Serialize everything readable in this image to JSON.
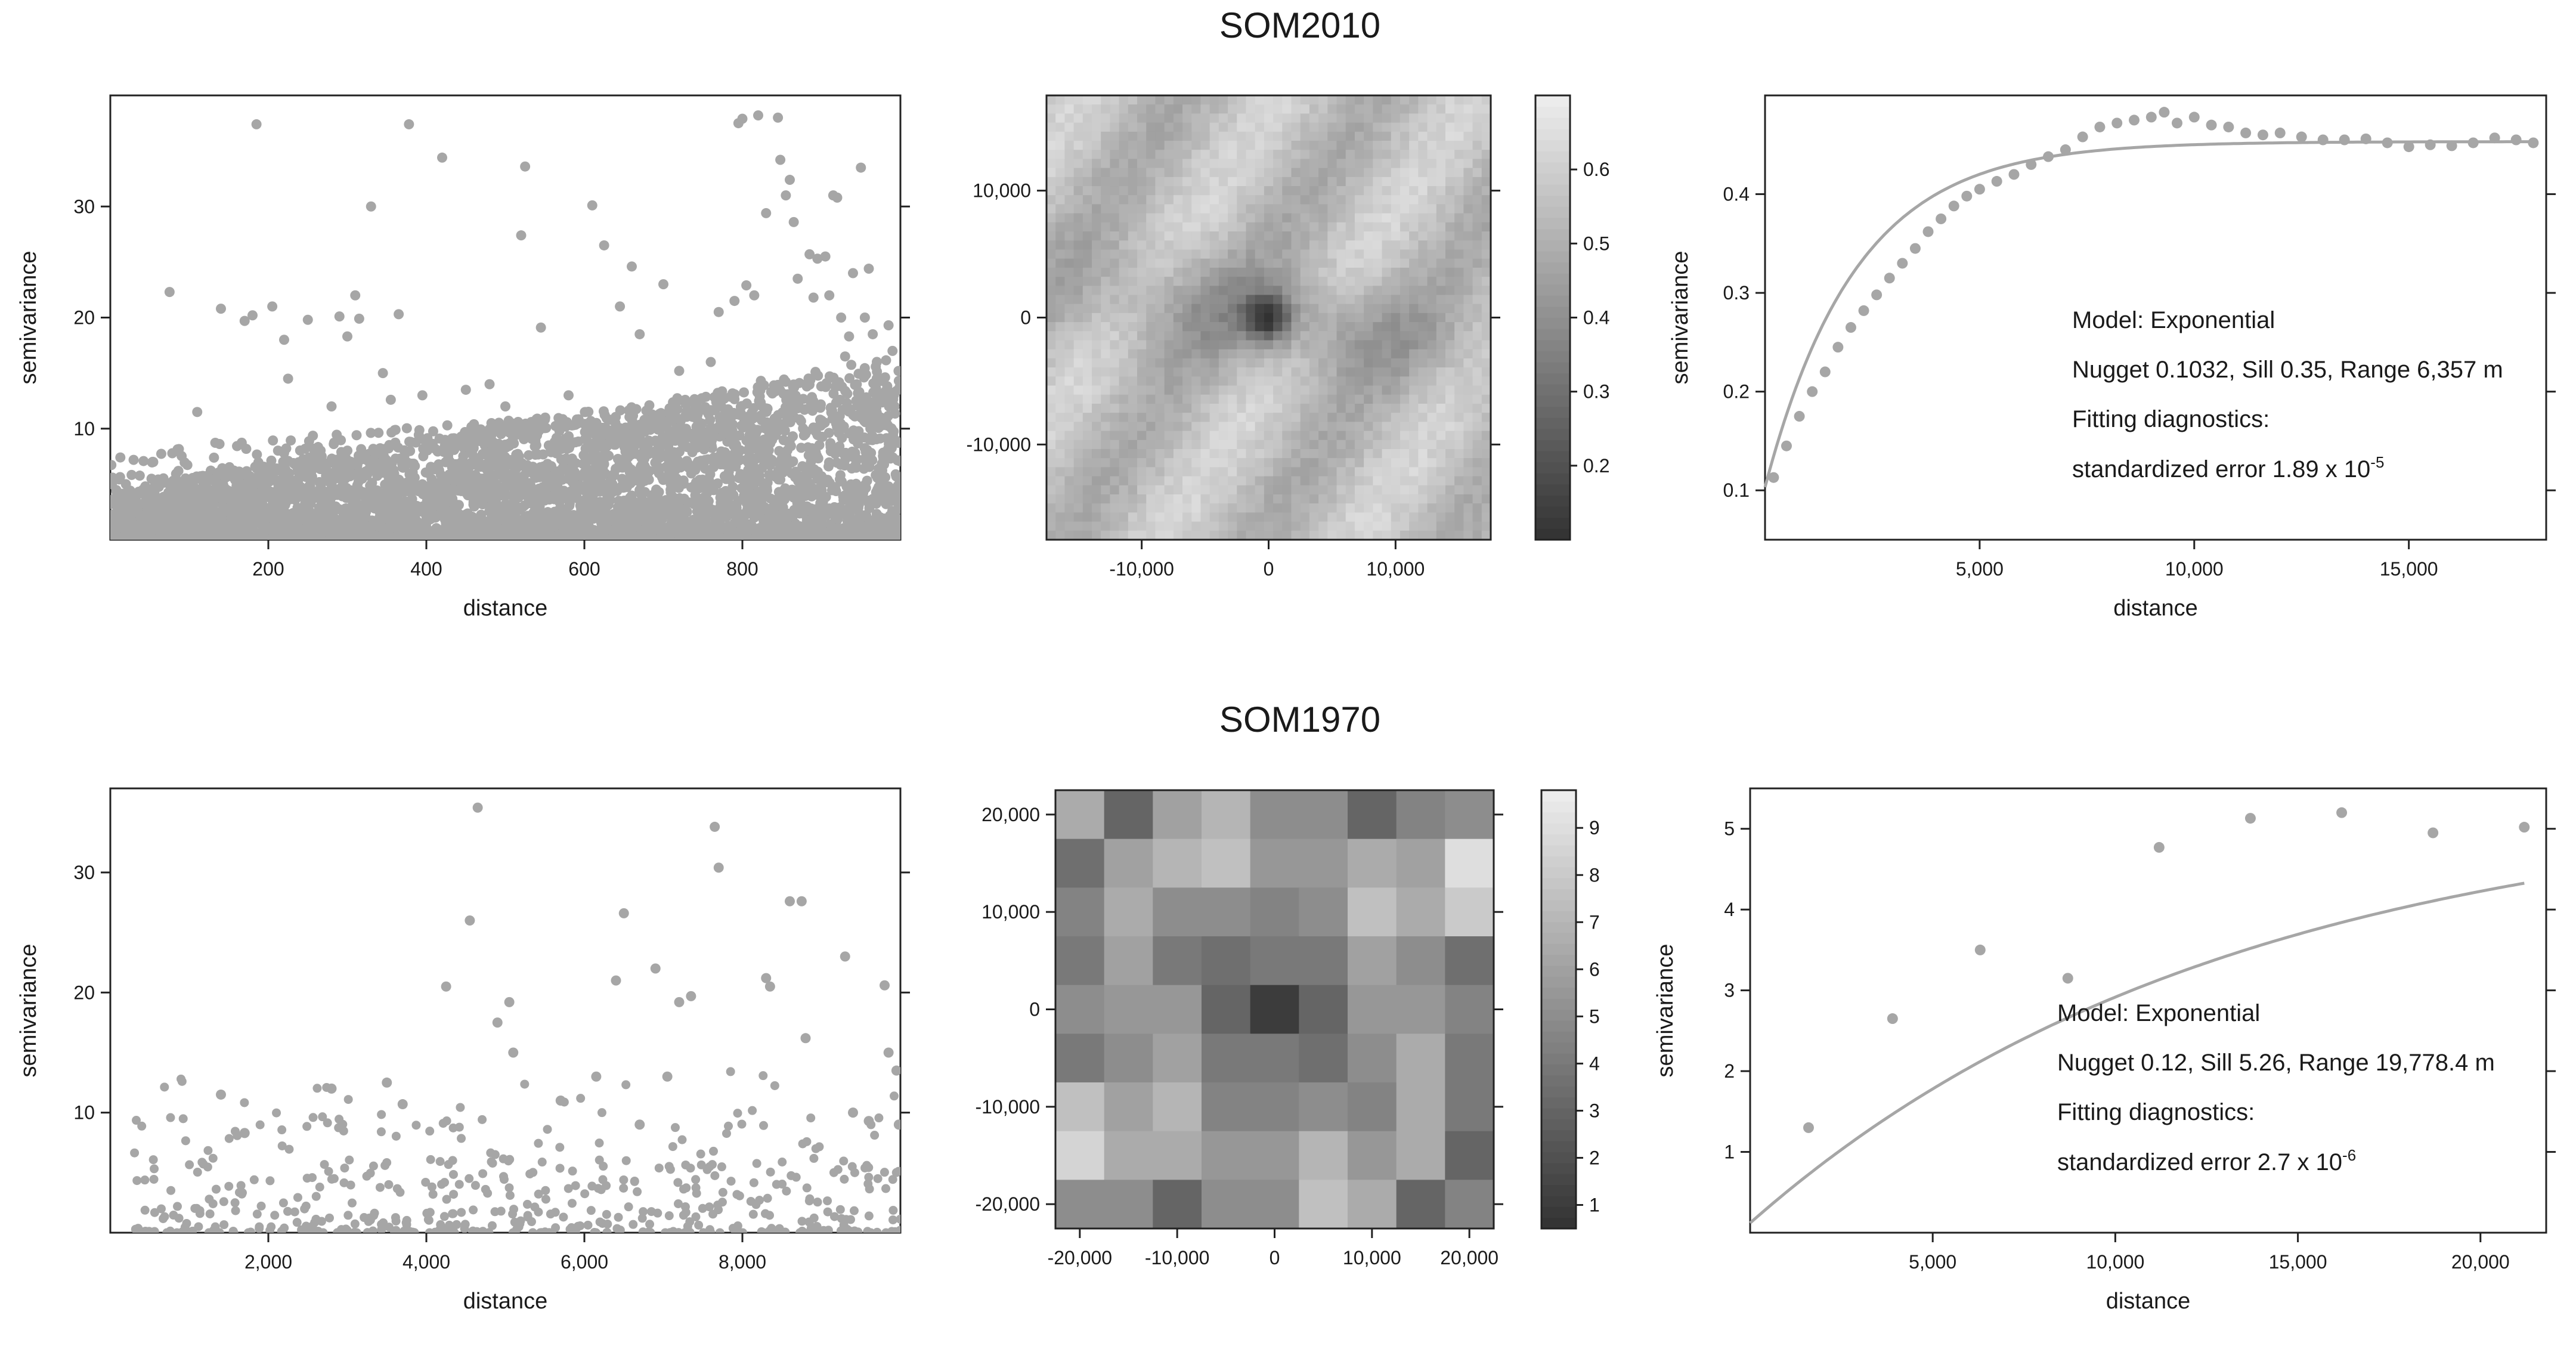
{
  "titles": [
    "SOM2010",
    "SOM1970"
  ],
  "chart_data": [
    {
      "id": "som2010-cloud",
      "type": "scatter",
      "xlabel": "distance",
      "ylabel": "semivariance",
      "xlim": [
        0,
        1000
      ],
      "ylim": [
        0,
        40
      ],
      "xticks": [
        200,
        400,
        600,
        800
      ],
      "xtick_labels": [
        "200",
        "400",
        "600",
        "800"
      ],
      "yticks": [
        10,
        20,
        30
      ],
      "ytick_labels": [
        "10",
        "20",
        "30"
      ],
      "point_color": "#a6a6a6",
      "points": [
        [
          2,
          5
        ],
        [
          75,
          22.3
        ],
        [
          110,
          11.5
        ],
        [
          140,
          20.8
        ],
        [
          170,
          19.7
        ],
        [
          185,
          37.4
        ],
        [
          180,
          20.2
        ],
        [
          205,
          21
        ],
        [
          220,
          18
        ],
        [
          225,
          14.5
        ],
        [
          250,
          19.8
        ],
        [
          280,
          12
        ],
        [
          290,
          20.1
        ],
        [
          300,
          18.3
        ],
        [
          310,
          22
        ],
        [
          315,
          19.9
        ],
        [
          330,
          30
        ],
        [
          345,
          15
        ],
        [
          355,
          12.6
        ],
        [
          365,
          20.3
        ],
        [
          378,
          37.4
        ],
        [
          395,
          13
        ],
        [
          420,
          34.4
        ],
        [
          450,
          13.5
        ],
        [
          480,
          14
        ],
        [
          500,
          12
        ],
        [
          525,
          33.6
        ],
        [
          520,
          27.4
        ],
        [
          545,
          19.1
        ],
        [
          580,
          13
        ],
        [
          610,
          30.1
        ],
        [
          625,
          26.5
        ],
        [
          645,
          21
        ],
        [
          660,
          24.6
        ],
        [
          670,
          18.5
        ],
        [
          700,
          23
        ],
        [
          720,
          15.2
        ],
        [
          760,
          16
        ],
        [
          770,
          20.5
        ],
        [
          790,
          21.5
        ],
        [
          795,
          37.5
        ],
        [
          800,
          37.9
        ],
        [
          805,
          22.9
        ],
        [
          815,
          22
        ],
        [
          820,
          38.2
        ],
        [
          830,
          29.4
        ],
        [
          845,
          38
        ],
        [
          848,
          34.2
        ],
        [
          855,
          31
        ],
        [
          860,
          32.4
        ],
        [
          865,
          28.6
        ],
        [
          870,
          23.5
        ],
        [
          885,
          25.7
        ],
        [
          890,
          21.8
        ],
        [
          895,
          25.3
        ],
        [
          905,
          25.5
        ],
        [
          910,
          22
        ],
        [
          915,
          31
        ],
        [
          920,
          30.8
        ],
        [
          925,
          20
        ],
        [
          930,
          16.5
        ],
        [
          935,
          18.3
        ],
        [
          940,
          24
        ],
        [
          950,
          33.5
        ],
        [
          955,
          20
        ],
        [
          960,
          24.4
        ],
        [
          965,
          18.5
        ],
        [
          970,
          14.5
        ],
        [
          985,
          19.3
        ],
        [
          990,
          17
        ],
        [
          998,
          14.3
        ]
      ]
    },
    {
      "id": "som2010-map",
      "type": "heatmap",
      "xlim": [
        -17500,
        17500
      ],
      "ylim": [
        -17500,
        17500
      ],
      "xticks": [
        -10000,
        0,
        10000
      ],
      "xtick_labels": [
        "-10,000",
        "0",
        "10,000"
      ],
      "yticks": [
        -10000,
        0,
        10000
      ],
      "ytick_labels": [
        "-10,000",
        "0",
        "10,000"
      ],
      "colorbar": {
        "min": 0.1,
        "max": 0.7,
        "ticks": [
          0.2,
          0.3,
          0.4,
          0.5,
          0.6
        ],
        "tick_labels": [
          "0.2",
          "0.3",
          "0.4",
          "0.5",
          "0.6"
        ]
      },
      "grid_n": 49
    },
    {
      "id": "som2010-model",
      "type": "scatter",
      "xlabel": "distance",
      "ylabel": "semivariance",
      "xlim": [
        0,
        18200
      ],
      "ylim": [
        0.05,
        0.5
      ],
      "xticks": [
        5000,
        10000,
        15000
      ],
      "xtick_labels": [
        "5,000",
        "10,000",
        "15,000"
      ],
      "yticks": [
        0.1,
        0.2,
        0.3,
        0.4
      ],
      "ytick_labels": [
        "0.1",
        "0.2",
        "0.3",
        "0.4"
      ],
      "point_color": "#a6a6a6",
      "model": {
        "type": "exponential",
        "nugget": 0.1032,
        "partial_sill": 0.35,
        "range": 6357
      },
      "points": [
        [
          200,
          0.113
        ],
        [
          500,
          0.145
        ],
        [
          800,
          0.175
        ],
        [
          1100,
          0.2
        ],
        [
          1400,
          0.22
        ],
        [
          1700,
          0.245
        ],
        [
          2000,
          0.265
        ],
        [
          2300,
          0.282
        ],
        [
          2600,
          0.298
        ],
        [
          2900,
          0.315
        ],
        [
          3200,
          0.33
        ],
        [
          3500,
          0.345
        ],
        [
          3800,
          0.362
        ],
        [
          4100,
          0.375
        ],
        [
          4400,
          0.388
        ],
        [
          4700,
          0.398
        ],
        [
          5000,
          0.405
        ],
        [
          5400,
          0.413
        ],
        [
          5800,
          0.42
        ],
        [
          6200,
          0.43
        ],
        [
          6600,
          0.438
        ],
        [
          7000,
          0.445
        ],
        [
          7400,
          0.458
        ],
        [
          7800,
          0.468
        ],
        [
          8200,
          0.472
        ],
        [
          8600,
          0.475
        ],
        [
          9000,
          0.478
        ],
        [
          9300,
          0.483
        ],
        [
          9600,
          0.472
        ],
        [
          10000,
          0.478
        ],
        [
          10400,
          0.47
        ],
        [
          10800,
          0.468
        ],
        [
          11200,
          0.462
        ],
        [
          11600,
          0.46
        ],
        [
          12000,
          0.462
        ],
        [
          12500,
          0.458
        ],
        [
          13000,
          0.455
        ],
        [
          13500,
          0.455
        ],
        [
          14000,
          0.456
        ],
        [
          14500,
          0.452
        ],
        [
          15000,
          0.448
        ],
        [
          15500,
          0.45
        ],
        [
          16000,
          0.449
        ],
        [
          16500,
          0.452
        ],
        [
          17000,
          0.457
        ],
        [
          17500,
          0.455
        ],
        [
          17900,
          0.452
        ]
      ],
      "annotation": {
        "model": "Model: Exponential",
        "params": "Nugget 0.1032, Sill 0.35, Range 6,357 m",
        "diag": "Fitting diagnostics:",
        "err_base": "standardized error 1.89 x 10",
        "err_exp": "-5"
      }
    },
    {
      "id": "som1970-cloud",
      "type": "scatter",
      "xlabel": "distance",
      "ylabel": "semivariance",
      "xlim": [
        0,
        10000
      ],
      "ylim": [
        0,
        37
      ],
      "xticks": [
        2000,
        4000,
        6000,
        8000
      ],
      "xtick_labels": [
        "2,000",
        "4,000",
        "6,000",
        "8,000"
      ],
      "yticks": [
        10,
        20,
        30
      ],
      "ytick_labels": [
        "10",
        "20",
        "30"
      ],
      "point_color": "#a6a6a6",
      "points": [
        [
          1400,
          11.5
        ],
        [
          1700,
          8.3
        ],
        [
          2800,
          12
        ],
        [
          3500,
          12.5
        ],
        [
          3700,
          10.7
        ],
        [
          4250,
          20.5
        ],
        [
          4550,
          26
        ],
        [
          4650,
          35.4
        ],
        [
          4900,
          17.5
        ],
        [
          5050,
          19.2
        ],
        [
          5100,
          15
        ],
        [
          5700,
          11
        ],
        [
          6150,
          13
        ],
        [
          6400,
          21
        ],
        [
          6500,
          26.6
        ],
        [
          6700,
          9
        ],
        [
          6900,
          22
        ],
        [
          7050,
          13
        ],
        [
          7200,
          19.2
        ],
        [
          7350,
          19.7
        ],
        [
          7650,
          33.8
        ],
        [
          7700,
          30.4
        ],
        [
          8300,
          21.2
        ],
        [
          8350,
          20.5
        ],
        [
          8600,
          27.6
        ],
        [
          8750,
          27.6
        ],
        [
          8800,
          16.2
        ],
        [
          9300,
          23
        ],
        [
          9400,
          10
        ],
        [
          9600,
          9.3
        ],
        [
          9800,
          20.6
        ],
        [
          9850,
          15
        ],
        [
          9950,
          13.5
        ],
        [
          9980,
          9
        ]
      ]
    },
    {
      "id": "som1970-map",
      "type": "heatmap",
      "xlim": [
        -22500,
        22500
      ],
      "ylim": [
        -22500,
        22500
      ],
      "xticks": [
        -20000,
        -10000,
        0,
        10000,
        20000
      ],
      "xtick_labels": [
        "-20,000",
        "-10,000",
        "0",
        "10,000",
        "20,000"
      ],
      "yticks": [
        -20000,
        -10000,
        0,
        10000,
        20000
      ],
      "ytick_labels": [
        "-20,000",
        "-10,000",
        "0",
        "10,000",
        "20,000"
      ],
      "colorbar": {
        "min": 0.5,
        "max": 9.8,
        "ticks": [
          1,
          2,
          3,
          4,
          5,
          6,
          7,
          8,
          9
        ],
        "tick_labels": [
          "1",
          "2",
          "3",
          "4",
          "5",
          "6",
          "7",
          "8",
          "9"
        ]
      },
      "values": [
        [
          6.5,
          3.0,
          6.0,
          7.0,
          5.0,
          5.0,
          3.0,
          4.5,
          5.0
        ],
        [
          3.5,
          6.0,
          7.0,
          7.5,
          5.5,
          5.5,
          6.5,
          6.0,
          9.0
        ],
        [
          4.5,
          6.5,
          5.0,
          5.0,
          4.5,
          5.0,
          7.5,
          6.5,
          8.0
        ],
        [
          4.0,
          6.0,
          4.0,
          3.5,
          4.0,
          4.0,
          6.0,
          5.0,
          3.5
        ],
        [
          5.0,
          5.5,
          5.5,
          3.0,
          1.0,
          3.0,
          5.5,
          5.5,
          4.5
        ],
        [
          4.0,
          5.0,
          6.0,
          4.0,
          4.0,
          3.5,
          5.0,
          6.5,
          4.0
        ],
        [
          7.5,
          6.0,
          7.0,
          4.5,
          4.5,
          5.0,
          4.5,
          6.5,
          4.0
        ],
        [
          8.5,
          6.5,
          6.5,
          5.5,
          5.5,
          7.0,
          5.5,
          6.5,
          3.0
        ],
        [
          5.0,
          5.0,
          3.0,
          5.0,
          5.0,
          7.5,
          6.5,
          3.0,
          4.5
        ]
      ]
    },
    {
      "id": "som1970-model",
      "type": "scatter",
      "xlabel": "distance",
      "ylabel": "semivariance",
      "xlim": [
        0,
        21800
      ],
      "ylim": [
        0,
        5.5
      ],
      "xticks": [
        5000,
        10000,
        15000,
        20000
      ],
      "xtick_labels": [
        "5,000",
        "10,000",
        "15,000",
        "20,000"
      ],
      "yticks": [
        1,
        2,
        3,
        4,
        5
      ],
      "ytick_labels": [
        "1",
        "2",
        "3",
        "4",
        "5"
      ],
      "point_color": "#a6a6a6",
      "model": {
        "type": "exponential",
        "nugget": 0.12,
        "partial_sill": 5.26,
        "range": 19778.4,
        "range_factor": 2
      },
      "points": [
        [
          1600,
          1.3
        ],
        [
          3900,
          2.65
        ],
        [
          6300,
          3.5
        ],
        [
          8700,
          3.15
        ],
        [
          11200,
          4.77
        ],
        [
          13700,
          5.13
        ],
        [
          16200,
          5.2
        ],
        [
          18700,
          4.95
        ],
        [
          21200,
          5.02
        ]
      ],
      "annotation": {
        "model": "Model: Exponential",
        "params": "Nugget 0.12, Sill 5.26, Range 19,778.4 m",
        "diag": "Fitting diagnostics:",
        "err_base": "standardized error 2.7 x 10",
        "err_exp": "-6"
      }
    }
  ]
}
